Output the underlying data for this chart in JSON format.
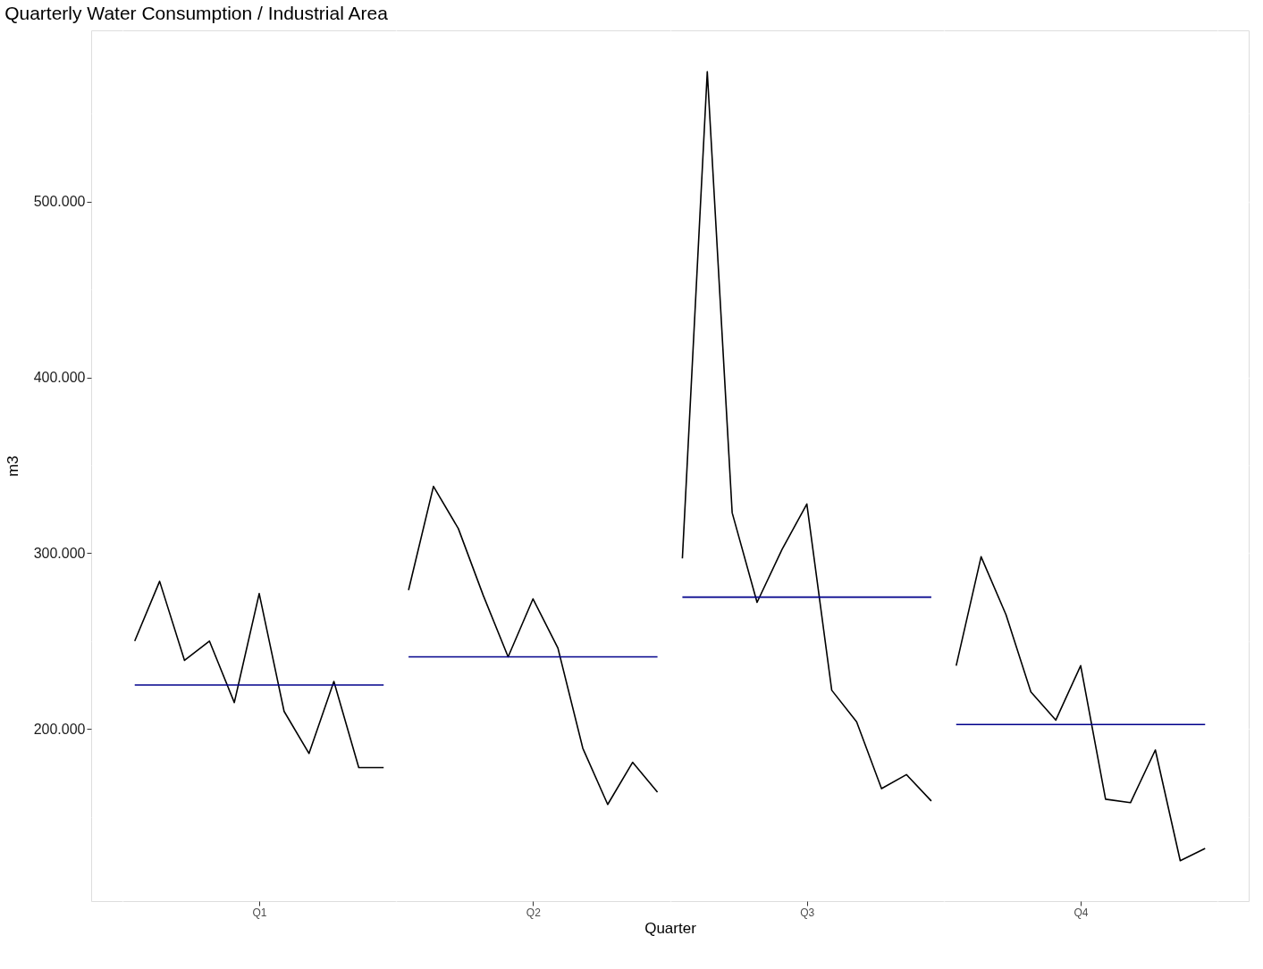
{
  "chart_data": {
    "type": "line",
    "title": "Quarterly Water Consumption / Industrial Area",
    "xlabel": "Quarter",
    "ylabel": "m3",
    "categories": [
      null,
      null,
      null,
      null,
      null,
      "Q1",
      null,
      null,
      null,
      null,
      null,
      null,
      null,
      null,
      null,
      null,
      "Q2",
      null,
      null,
      null,
      null,
      null,
      null,
      null,
      null,
      null,
      null,
      "Q3",
      null,
      null,
      null,
      null,
      null,
      null,
      null,
      null,
      null,
      null,
      "Q4",
      null,
      null,
      null,
      null,
      null
    ],
    "ylim": [
      102,
      597.5
    ],
    "yticks": [
      {
        "value": 150,
        "label": null
      },
      {
        "value": 200,
        "label": "200.000"
      },
      {
        "value": 250,
        "label": null
      },
      {
        "value": 300,
        "label": "300.000"
      },
      {
        "value": 350,
        "label": null
      },
      {
        "value": 400,
        "label": "400.000"
      },
      {
        "value": 450,
        "label": null
      },
      {
        "value": 500,
        "label": "500.000"
      },
      {
        "value": 550,
        "label": null
      }
    ],
    "grid": true,
    "marker": "none",
    "line_style": "solid",
    "series": [
      {
        "color": "#000000",
        "values": [
          250,
          284,
          239,
          250,
          215,
          277,
          210,
          186,
          227,
          178,
          178,
          null,
          null,
          null,
          null,
          null,
          null,
          null,
          null,
          null,
          null,
          null,
          null,
          null,
          null,
          null,
          null,
          null,
          null,
          null,
          null,
          null,
          null,
          null,
          null,
          null,
          null,
          null,
          null,
          null,
          null,
          null,
          null,
          null
        ]
      },
      {
        "color": "#000000",
        "values": [
          null,
          null,
          null,
          null,
          null,
          null,
          null,
          null,
          null,
          null,
          null,
          279,
          338,
          314,
          276,
          241,
          274,
          246,
          189,
          157,
          181,
          164,
          null,
          null,
          null,
          null,
          null,
          null,
          null,
          null,
          null,
          null,
          null,
          null,
          null,
          null,
          null,
          null,
          null,
          null,
          null,
          null,
          null,
          null
        ]
      },
      {
        "color": "#000000",
        "values": [
          null,
          null,
          null,
          null,
          null,
          null,
          null,
          null,
          null,
          null,
          null,
          null,
          null,
          null,
          null,
          null,
          null,
          null,
          null,
          null,
          null,
          null,
          297,
          574,
          323,
          272,
          302,
          328,
          222,
          204,
          166,
          174,
          159,
          null,
          null,
          null,
          null,
          null,
          null,
          null,
          null,
          null,
          null,
          null
        ]
      },
      {
        "color": "#000000",
        "values": [
          null,
          null,
          null,
          null,
          null,
          null,
          null,
          null,
          null,
          null,
          null,
          null,
          null,
          null,
          null,
          null,
          null,
          null,
          null,
          null,
          null,
          null,
          null,
          null,
          null,
          null,
          null,
          null,
          null,
          null,
          null,
          null,
          null,
          236,
          298,
          265,
          221,
          205,
          236,
          160,
          158,
          188,
          125,
          132
        ]
      },
      {
        "color": "#00008b",
        "values": [
          225,
          225,
          225,
          225,
          225,
          225,
          225,
          225,
          225,
          225,
          225,
          null,
          null,
          null,
          null,
          null,
          null,
          null,
          null,
          null,
          null,
          null,
          null,
          null,
          null,
          null,
          null,
          null,
          null,
          null,
          null,
          null,
          null,
          null,
          null,
          null,
          null,
          null,
          null,
          null,
          null,
          null,
          null,
          null
        ]
      },
      {
        "color": "#00008b",
        "values": [
          null,
          null,
          null,
          null,
          null,
          null,
          null,
          null,
          null,
          null,
          null,
          241,
          241,
          241,
          241,
          241,
          241,
          241,
          241,
          241,
          241,
          241,
          null,
          null,
          null,
          null,
          null,
          null,
          null,
          null,
          null,
          null,
          null,
          null,
          null,
          null,
          null,
          null,
          null,
          null,
          null,
          null,
          null,
          null
        ]
      },
      {
        "color": "#00008b",
        "values": [
          null,
          null,
          null,
          null,
          null,
          null,
          null,
          null,
          null,
          null,
          null,
          null,
          null,
          null,
          null,
          null,
          null,
          null,
          null,
          null,
          null,
          null,
          275,
          275,
          275,
          275,
          275,
          275,
          275,
          275,
          275,
          275,
          275,
          null,
          null,
          null,
          null,
          null,
          null,
          null,
          null,
          null,
          null,
          null
        ]
      },
      {
        "color": "#00008b",
        "values": [
          null,
          null,
          null,
          null,
          null,
          null,
          null,
          null,
          null,
          null,
          null,
          null,
          null,
          null,
          null,
          null,
          null,
          null,
          null,
          null,
          null,
          null,
          null,
          null,
          null,
          null,
          null,
          null,
          null,
          null,
          null,
          null,
          null,
          202.5,
          202.5,
          202.5,
          202.5,
          202.5,
          202.5,
          202.5,
          202.5,
          202.5,
          202.5,
          202.5
        ]
      }
    ]
  }
}
